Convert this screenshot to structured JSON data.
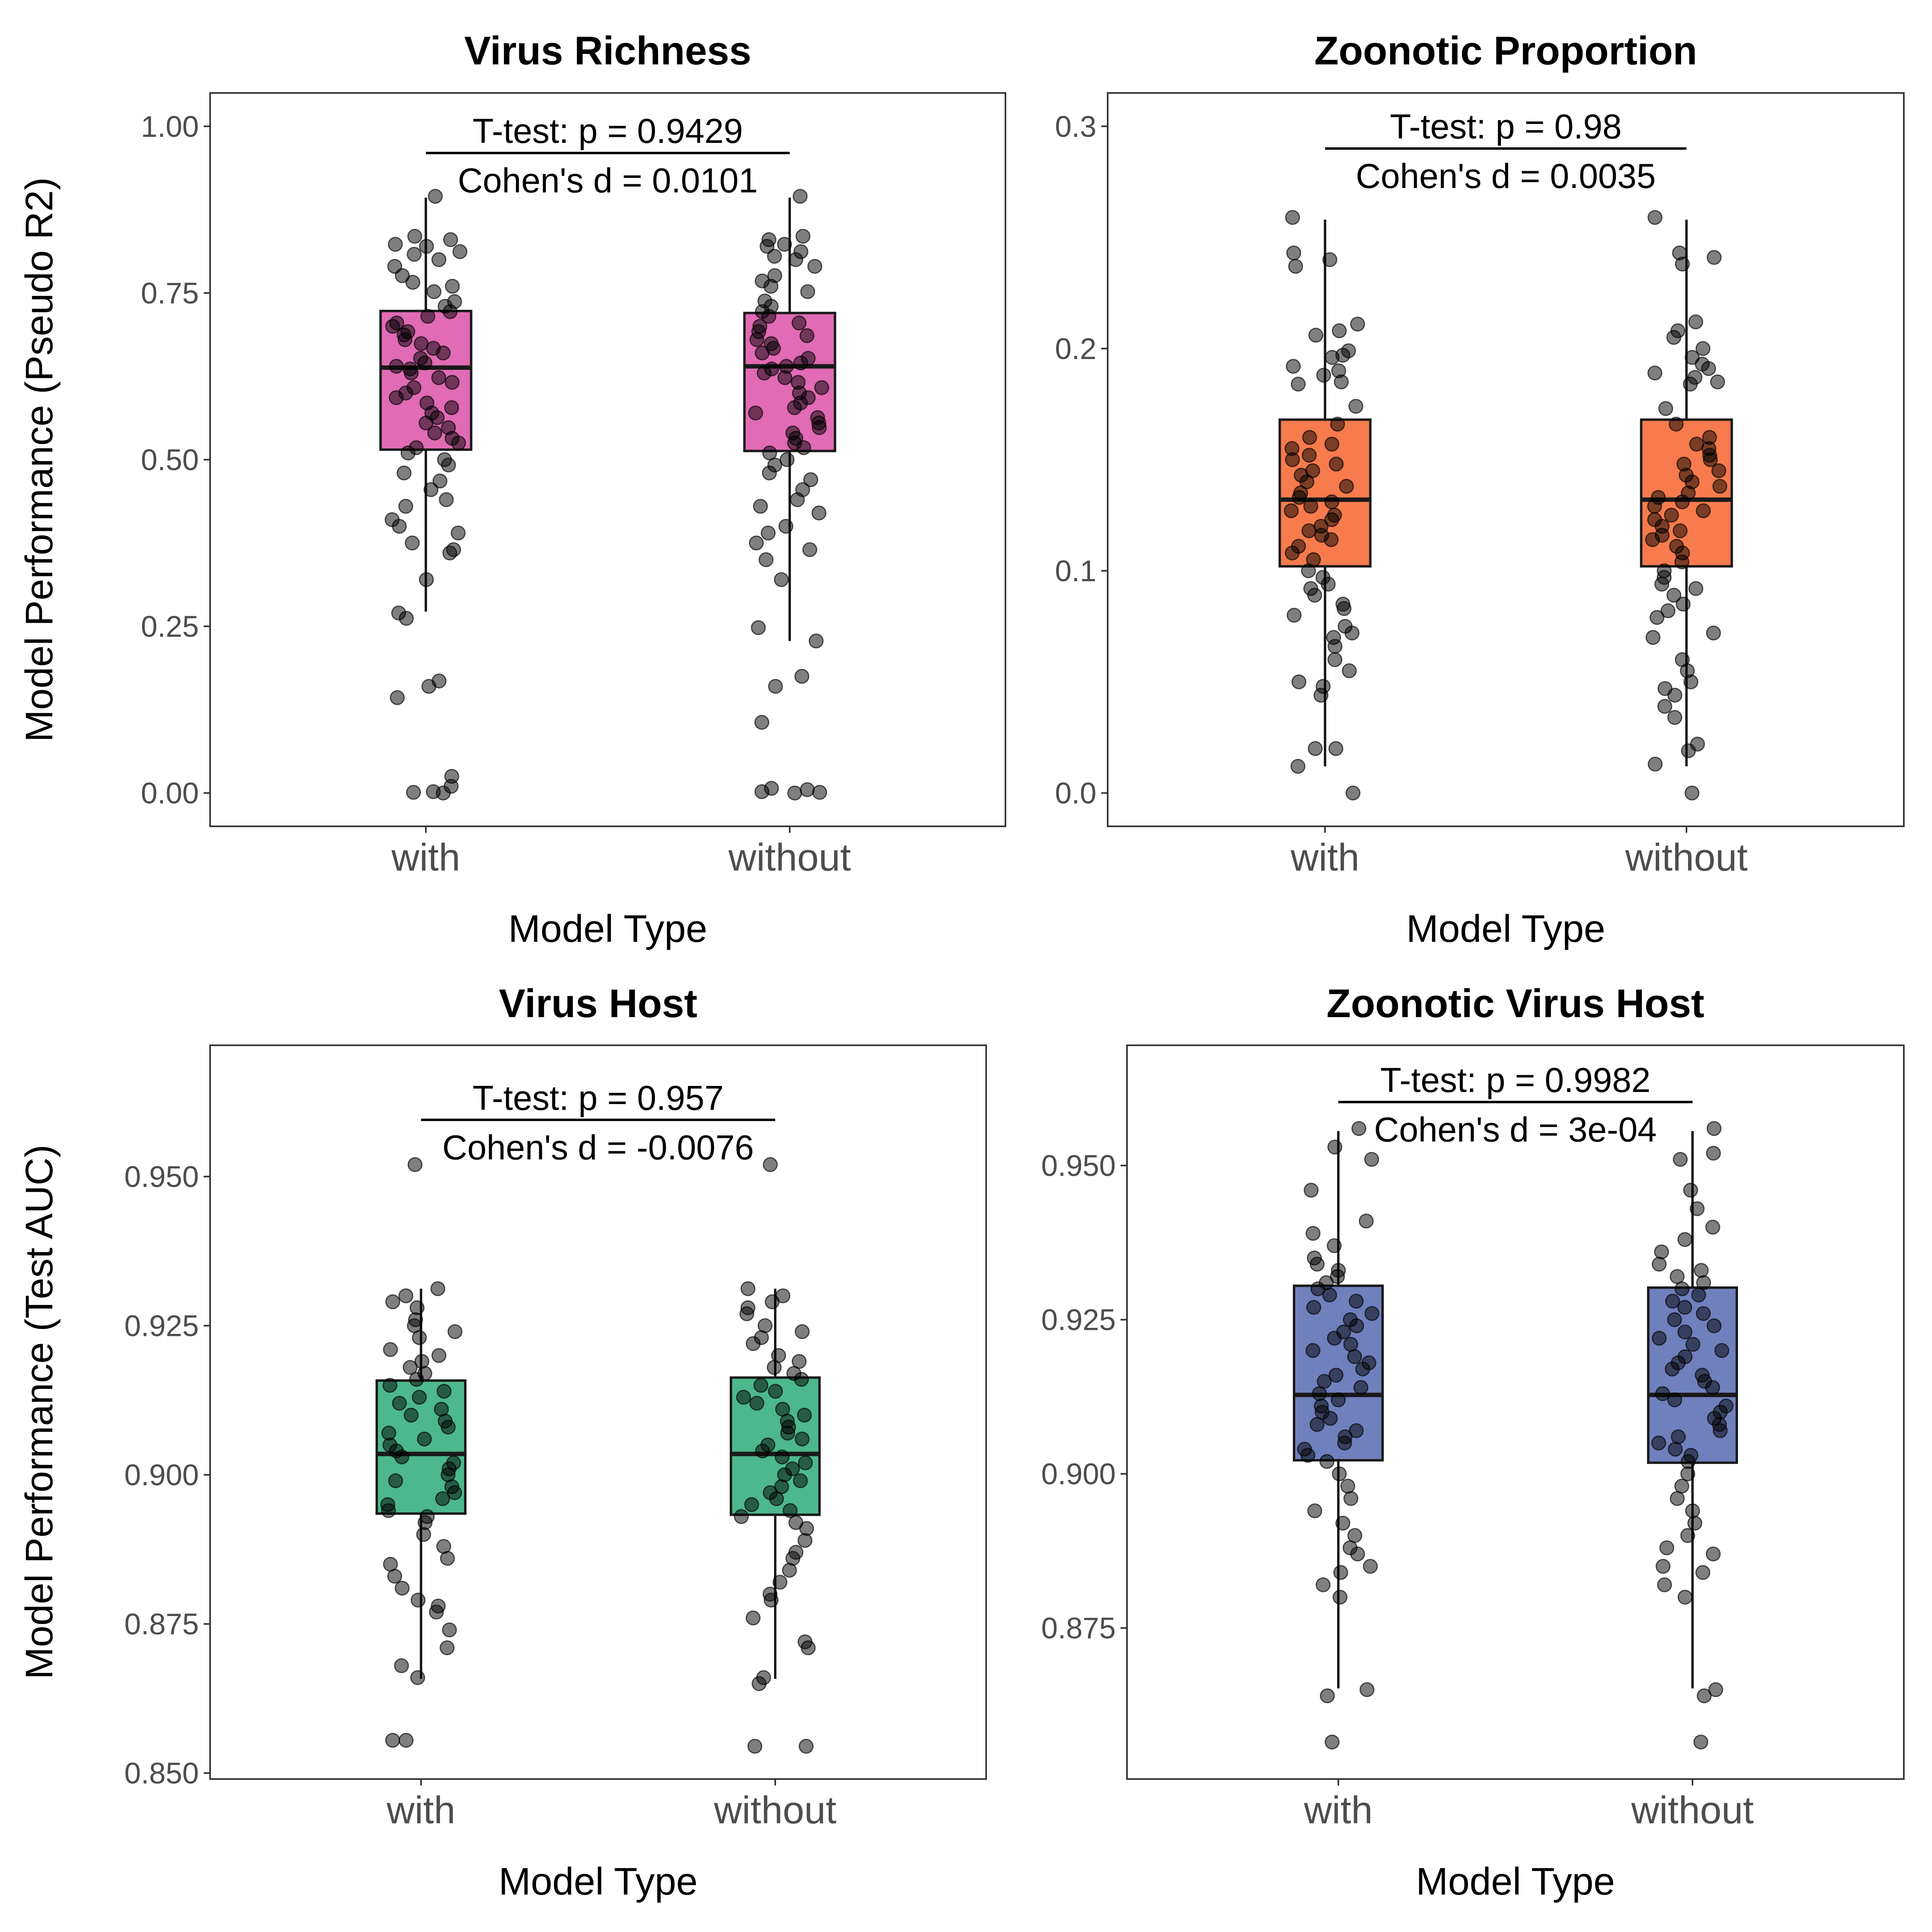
{
  "chart_data": [
    {
      "type": "box",
      "title": "Virus Richness",
      "xlabel": "Model Type",
      "ylabel": "Model Performance (Pseudo R2)",
      "categories": [
        "with",
        "without"
      ],
      "ylim": [
        -0.05,
        1.05
      ],
      "yticks": [
        "0.00",
        "0.25",
        "0.50",
        "0.75",
        "1.00"
      ],
      "fill": "#E16BB4",
      "boxes": [
        {
          "q1": 0.515,
          "median": 0.638,
          "q3": 0.723,
          "lower": 0.272,
          "upper": 0.893
        },
        {
          "q1": 0.513,
          "median": 0.64,
          "q3": 0.72,
          "lower": 0.228,
          "upper": 0.893
        }
      ],
      "points": [
        [
          0.895,
          0.835,
          0.83,
          0.823,
          0.82,
          0.812,
          0.808,
          0.8,
          0.79,
          0.776,
          0.766,
          0.76,
          0.752,
          0.737,
          0.73,
          0.722,
          0.715,
          0.705,
          0.7,
          0.692,
          0.687,
          0.68,
          0.674,
          0.667,
          0.66,
          0.652,
          0.645,
          0.64,
          0.636,
          0.63,
          0.623,
          0.616,
          0.608,
          0.6,
          0.593,
          0.585,
          0.578,
          0.57,
          0.563,
          0.555,
          0.548,
          0.54,
          0.532,
          0.525,
          0.518,
          0.51,
          0.5,
          0.492,
          0.48,
          0.468,
          0.455,
          0.44,
          0.43,
          0.41,
          0.4,
          0.39,
          0.375,
          0.365,
          0.36,
          0.32,
          0.27,
          0.262,
          0.168,
          0.16,
          0.143,
          0.025,
          0.01,
          0.002,
          0.001,
          0.0
        ],
        [
          0.895,
          0.835,
          0.83,
          0.823,
          0.82,
          0.812,
          0.805,
          0.8,
          0.79,
          0.776,
          0.768,
          0.76,
          0.752,
          0.738,
          0.73,
          0.722,
          0.715,
          0.705,
          0.7,
          0.692,
          0.686,
          0.68,
          0.674,
          0.667,
          0.66,
          0.652,
          0.645,
          0.64,
          0.636,
          0.63,
          0.623,
          0.616,
          0.608,
          0.6,
          0.593,
          0.585,
          0.578,
          0.57,
          0.563,
          0.555,
          0.548,
          0.54,
          0.532,
          0.525,
          0.518,
          0.51,
          0.5,
          0.492,
          0.48,
          0.47,
          0.455,
          0.44,
          0.43,
          0.42,
          0.4,
          0.39,
          0.375,
          0.365,
          0.35,
          0.32,
          0.248,
          0.228,
          0.175,
          0.16,
          0.106,
          0.007,
          0.005,
          0.002,
          0.001,
          0.0
        ]
      ],
      "annotation": {
        "line1": "T-test: p = 0.9429",
        "line2": "Cohen's d = 0.0101",
        "bracket_y": 0.96
      }
    },
    {
      "type": "box",
      "title": "Zoonotic Proportion",
      "xlabel": "Model Type",
      "ylabel": "",
      "categories": [
        "with",
        "without"
      ],
      "ylim": [
        -0.015,
        0.315
      ],
      "yticks": [
        "0.0",
        "0.1",
        "0.2",
        "0.3"
      ],
      "fill": "#F77B4D",
      "boxes": [
        {
          "q1": 0.102,
          "median": 0.132,
          "q3": 0.168,
          "lower": 0.012,
          "upper": 0.258
        },
        {
          "q1": 0.102,
          "median": 0.132,
          "q3": 0.168,
          "lower": 0.012,
          "upper": 0.258
        }
      ],
      "points": [
        [
          0.259,
          0.243,
          0.24,
          0.237,
          0.211,
          0.208,
          0.206,
          0.199,
          0.197,
          0.196,
          0.192,
          0.19,
          0.188,
          0.185,
          0.184,
          0.174,
          0.166,
          0.16,
          0.157,
          0.155,
          0.152,
          0.15,
          0.148,
          0.145,
          0.143,
          0.14,
          0.138,
          0.135,
          0.133,
          0.131,
          0.129,
          0.127,
          0.125,
          0.123,
          0.12,
          0.118,
          0.116,
          0.114,
          0.111,
          0.108,
          0.105,
          0.1,
          0.097,
          0.094,
          0.092,
          0.089,
          0.085,
          0.083,
          0.08,
          0.075,
          0.072,
          0.07,
          0.066,
          0.06,
          0.055,
          0.05,
          0.048,
          0.044,
          0.02,
          0.02,
          0.012,
          0.0
        ],
        [
          0.259,
          0.243,
          0.241,
          0.238,
          0.212,
          0.208,
          0.205,
          0.2,
          0.196,
          0.193,
          0.191,
          0.189,
          0.187,
          0.185,
          0.184,
          0.173,
          0.166,
          0.16,
          0.157,
          0.155,
          0.152,
          0.15,
          0.148,
          0.145,
          0.143,
          0.14,
          0.138,
          0.135,
          0.133,
          0.131,
          0.129,
          0.127,
          0.125,
          0.123,
          0.12,
          0.118,
          0.116,
          0.114,
          0.111,
          0.108,
          0.104,
          0.1,
          0.097,
          0.094,
          0.092,
          0.089,
          0.085,
          0.082,
          0.079,
          0.072,
          0.07,
          0.06,
          0.055,
          0.05,
          0.047,
          0.044,
          0.039,
          0.034,
          0.022,
          0.019,
          0.013,
          0.0
        ]
      ],
      "annotation": {
        "line1": "T-test: p = 0.98",
        "line2": "Cohen's d = 0.0035",
        "bracket_y": 0.29
      }
    },
    {
      "type": "box",
      "title": "Virus Host",
      "xlabel": "Model Type",
      "ylabel": "Model Performance (Test AUC)",
      "categories": [
        "with",
        "without"
      ],
      "ylim": [
        0.849,
        0.972
      ],
      "yticks": [
        "0.850",
        "0.875",
        "0.900",
        "0.925",
        "0.950"
      ],
      "fill": "#4DB88C",
      "boxes": [
        {
          "q1": 0.8935,
          "median": 0.9035,
          "q3": 0.9158,
          "lower": 0.8658,
          "upper": 0.9312
        },
        {
          "q1": 0.8933,
          "median": 0.9035,
          "q3": 0.9163,
          "lower": 0.8658,
          "upper": 0.9312
        }
      ],
      "points": [
        [
          0.952,
          0.9312,
          0.93,
          0.929,
          0.928,
          0.926,
          0.925,
          0.924,
          0.923,
          0.921,
          0.92,
          0.919,
          0.918,
          0.917,
          0.916,
          0.915,
          0.914,
          0.913,
          0.912,
          0.911,
          0.91,
          0.909,
          0.908,
          0.907,
          0.906,
          0.905,
          0.904,
          0.903,
          0.902,
          0.901,
          0.9,
          0.899,
          0.898,
          0.897,
          0.896,
          0.895,
          0.894,
          0.893,
          0.892,
          0.89,
          0.888,
          0.886,
          0.885,
          0.883,
          0.881,
          0.879,
          0.878,
          0.877,
          0.874,
          0.871,
          0.868,
          0.866,
          0.8555,
          0.8555
        ],
        [
          0.952,
          0.9312,
          0.93,
          0.929,
          0.928,
          0.927,
          0.925,
          0.924,
          0.923,
          0.922,
          0.92,
          0.919,
          0.918,
          0.917,
          0.916,
          0.915,
          0.914,
          0.913,
          0.912,
          0.911,
          0.91,
          0.909,
          0.908,
          0.907,
          0.906,
          0.905,
          0.904,
          0.903,
          0.902,
          0.901,
          0.9,
          0.899,
          0.898,
          0.897,
          0.896,
          0.895,
          0.894,
          0.893,
          0.892,
          0.891,
          0.889,
          0.887,
          0.886,
          0.884,
          0.882,
          0.88,
          0.879,
          0.876,
          0.872,
          0.871,
          0.866,
          0.865,
          0.8545,
          0.8545
        ]
      ],
      "annotation": {
        "line1": "T-test: p = 0.957",
        "line2": "Cohen's d = -0.0076",
        "bracket_y": 0.9595
      }
    },
    {
      "type": "box",
      "title": "Zoonotic Virus Host",
      "xlabel": "Model Type",
      "ylabel": "",
      "categories": [
        "with",
        "without"
      ],
      "ylim": [
        0.8505,
        0.9695
      ],
      "yticks": [
        "0.875",
        "0.900",
        "0.925",
        "0.950"
      ],
      "fill": "#6F80BD",
      "boxes": [
        {
          "q1": 0.9022,
          "median": 0.9128,
          "q3": 0.9305,
          "lower": 0.8652,
          "upper": 0.9556
        },
        {
          "q1": 0.9018,
          "median": 0.9128,
          "q3": 0.9302,
          "lower": 0.8652,
          "upper": 0.9556
        }
      ],
      "points": [
        [
          0.956,
          0.953,
          0.951,
          0.946,
          0.941,
          0.939,
          0.937,
          0.935,
          0.934,
          0.933,
          0.932,
          0.931,
          0.93,
          0.929,
          0.928,
          0.927,
          0.926,
          0.925,
          0.924,
          0.923,
          0.922,
          0.921,
          0.92,
          0.919,
          0.918,
          0.917,
          0.916,
          0.915,
          0.914,
          0.913,
          0.912,
          0.911,
          0.91,
          0.909,
          0.908,
          0.907,
          0.906,
          0.905,
          0.904,
          0.903,
          0.902,
          0.9,
          0.898,
          0.896,
          0.894,
          0.892,
          0.89,
          0.888,
          0.887,
          0.885,
          0.884,
          0.882,
          0.88,
          0.865,
          0.864,
          0.8565
        ],
        [
          0.956,
          0.952,
          0.951,
          0.946,
          0.943,
          0.94,
          0.938,
          0.936,
          0.934,
          0.933,
          0.932,
          0.931,
          0.93,
          0.929,
          0.928,
          0.927,
          0.926,
          0.925,
          0.924,
          0.923,
          0.922,
          0.921,
          0.92,
          0.919,
          0.918,
          0.917,
          0.916,
          0.915,
          0.914,
          0.913,
          0.912,
          0.911,
          0.91,
          0.909,
          0.908,
          0.907,
          0.906,
          0.905,
          0.904,
          0.903,
          0.902,
          0.9,
          0.898,
          0.896,
          0.894,
          0.892,
          0.89,
          0.888,
          0.887,
          0.885,
          0.884,
          0.882,
          0.88,
          0.865,
          0.864,
          0.8565
        ]
      ],
      "annotation": {
        "line1": "T-test: p = 0.9982",
        "line2": "Cohen's d = 3e-04",
        "bracket_y": 0.9603
      }
    }
  ]
}
